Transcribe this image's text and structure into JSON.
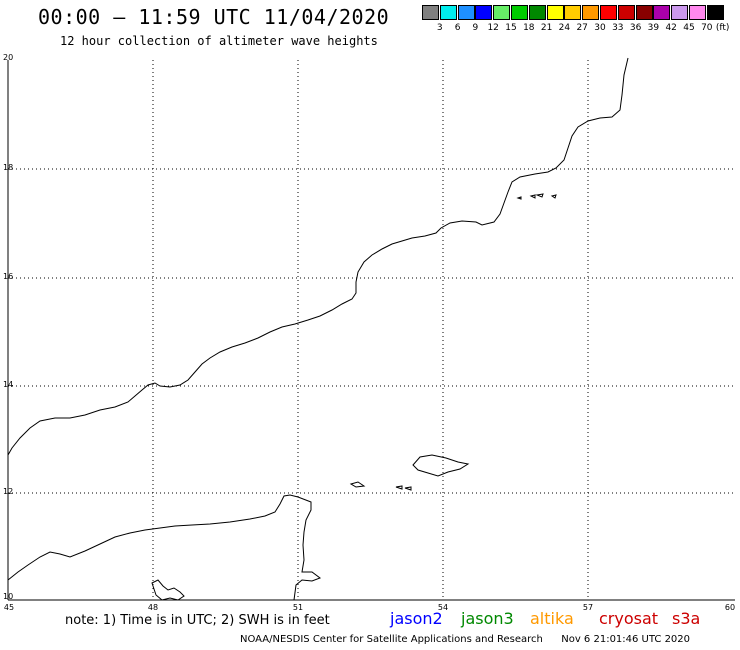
{
  "header": {
    "title": "00:00 – 11:59 UTC 11/04/2020",
    "subtitle": "12 hour collection of altimeter wave heights"
  },
  "legend": {
    "swatches": [
      "#808080",
      "#00eeee",
      "#1e90ff",
      "#0000ff",
      "#66ee66",
      "#00cc00",
      "#008800",
      "#ffff00",
      "#ffcc00",
      "#ff9900",
      "#ff0000",
      "#cc0000",
      "#880000",
      "#aa00aa",
      "#cc99ee",
      "#ff88ee",
      "#000000"
    ],
    "labels": [
      "3",
      "6",
      "9",
      "12",
      "15",
      "18",
      "21",
      "24",
      "27",
      "30",
      "33",
      "36",
      "39",
      "42",
      "45",
      "70"
    ],
    "unit": "(ft)"
  },
  "axes": {
    "lat_labels": [
      "20",
      "18",
      "16",
      "14",
      "12",
      "10"
    ],
    "lon_labels": [
      "45",
      "48",
      "51",
      "54",
      "57",
      "60"
    ]
  },
  "note": "note: 1) Time is in UTC; 2) SWH is in feet",
  "satellites": [
    {
      "name": "jason2",
      "color": "#0000ff"
    },
    {
      "name": "jason3",
      "color": "#008800"
    },
    {
      "name": "altika",
      "color": "#ff9900"
    },
    {
      "name": "cryosat",
      "color": "#cc0000"
    },
    {
      "name": "s3a",
      "color": "#cc0000"
    }
  ],
  "footer": {
    "agency": "NOAA/NESDIS Center for Satellite Applications and Research",
    "timestamp": "Nov  6 21:01:46 UTC 2020"
  }
}
